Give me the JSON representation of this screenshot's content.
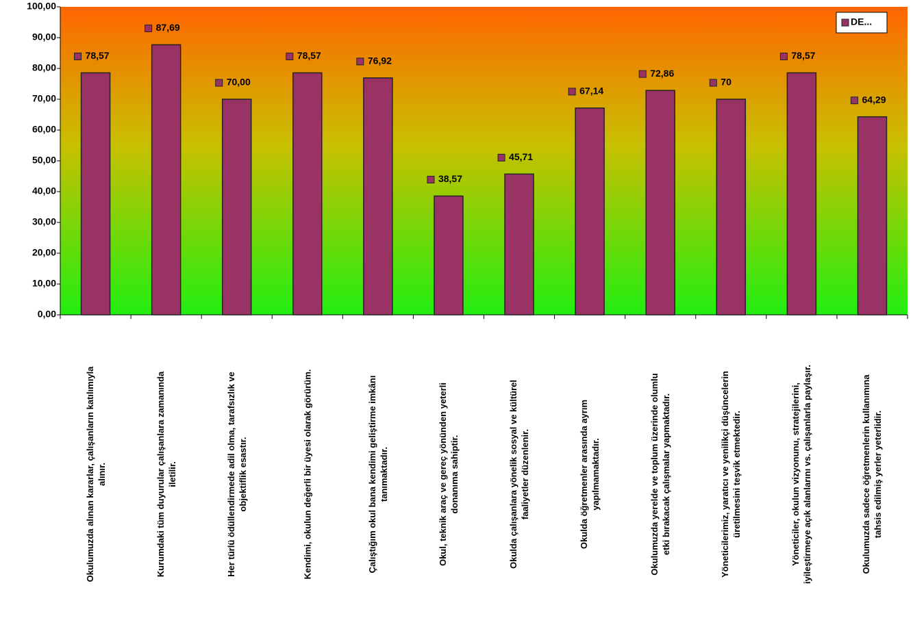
{
  "chart_data": {
    "type": "bar",
    "categories": [
      "Okulumuzda alınan kararlar, çalışanların katılımıyla\nalınır.",
      "Kurumdaki tüm duyurular çalışanlara zamanında\niletilir.",
      "Her türlü ödüllendirmede adil olma, tarafsızlık ve\nobjektiflik esastır.",
      "Kendimi, okulun değerli bir üyesi olarak görürüm.",
      "Çalıştığım okul bana kendimi geliştirme imkânı\ntanımaktadır.",
      "Okul, teknik araç ve gereç yönünden yeterli\ndonanıma sahiptir.",
      "Okulda çalışanlara yönelik sosyal ve kültürel\nfaaliyetler düzenlenir.",
      "Okulda öğretmenler arasında ayrım\nyapılmamaktadır.",
      "Okulumuzda yerelde ve toplum üzerinde olumlu\netki bırakacak çalışmalar yapmaktadır.",
      "Yöneticilerimiz, yaratıcı ve yenilikçi düşüncelerin\nüretilmesini teşvik etmektedir.",
      "Yöneticiler, okulun vizyonunu, stratejilerini,\niyileştirmeye açık alanlarını vs. çalışanlarla paylaşır.",
      "Okulumuzda sadece öğretmenlerin kullanımına\ntahsis edilmiş yerler yeterlidir."
    ],
    "series": [
      {
        "name": "DE...",
        "color": "#993366",
        "values": [
          78.57,
          87.69,
          70.0,
          78.57,
          76.92,
          38.57,
          45.71,
          67.14,
          72.86,
          70,
          78.57,
          64.29
        ],
        "value_labels": [
          "78,57",
          "87,69",
          "70,00",
          "78,57",
          "76,92",
          "38,57",
          "45,71",
          "67,14",
          "72,86",
          "70",
          "78,57",
          "64,29"
        ]
      }
    ],
    "ylim": [
      0,
      100
    ],
    "yticks": [
      {
        "value": 0,
        "label": "0,00"
      },
      {
        "value": 10,
        "label": "10,00"
      },
      {
        "value": 20,
        "label": "20,00"
      },
      {
        "value": 30,
        "label": "30,00"
      },
      {
        "value": 40,
        "label": "40,00"
      },
      {
        "value": 50,
        "label": "50,00"
      },
      {
        "value": 60,
        "label": "60,00"
      },
      {
        "value": 70,
        "label": "70,00"
      },
      {
        "value": 80,
        "label": "80,00"
      },
      {
        "value": 90,
        "label": "90,00"
      },
      {
        "value": 100,
        "label": "100,00"
      }
    ],
    "legend_position": "upper right"
  }
}
